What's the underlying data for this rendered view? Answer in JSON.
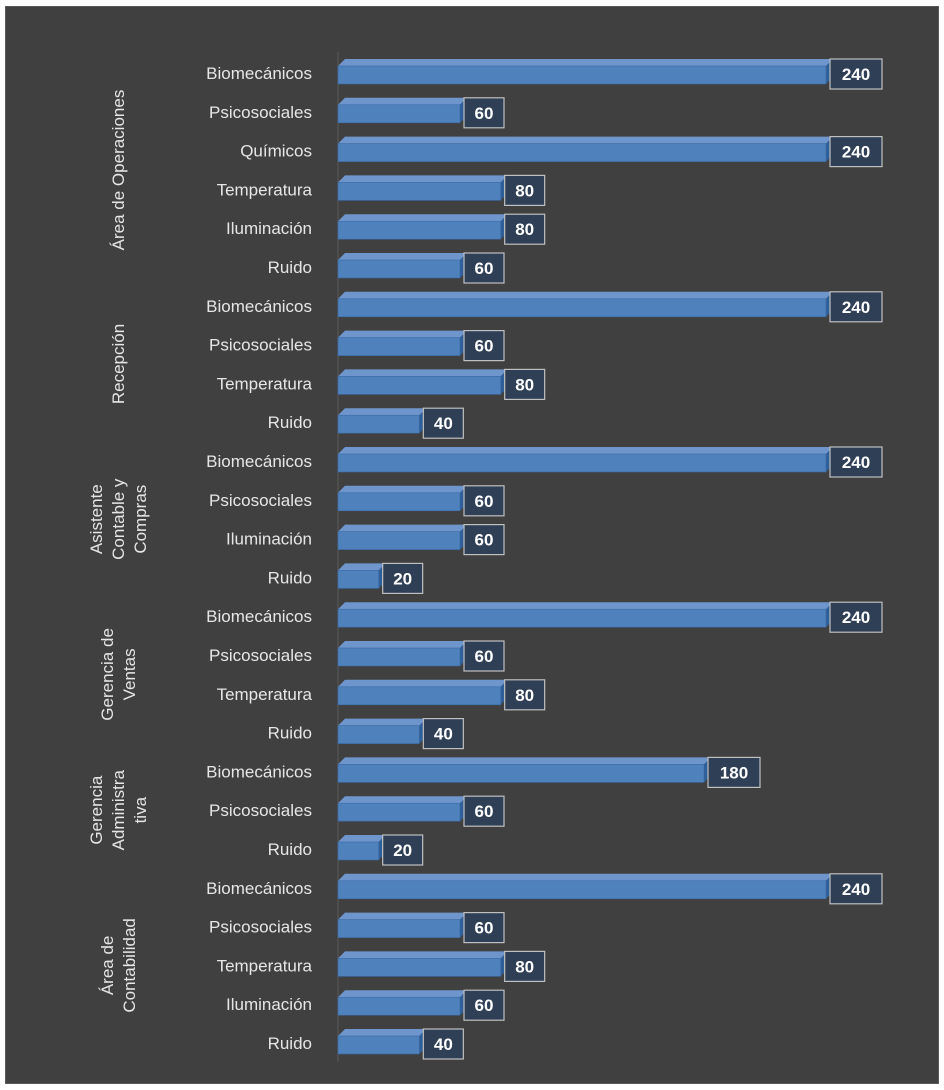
{
  "chart_data": {
    "type": "bar",
    "orientation": "horizontal",
    "style": "3d-clustered-bar",
    "colors": {
      "background": "#404040",
      "bar_front": "#4f81bd",
      "bar_top": "#6f96cc",
      "bar_side": "#2f5f98",
      "label_box": "#2f3f56",
      "label_border": "#c0c0c0",
      "text": "#e6e6e6"
    },
    "xlim": [
      0,
      240
    ],
    "grid": false,
    "legend": "none",
    "groups": [
      {
        "name": "Área de Operaciones",
        "name_lines": [
          "Área de Operaciones"
        ],
        "items": [
          {
            "category": "Biomecánicos",
            "value": 240
          },
          {
            "category": "Psicosociales",
            "value": 60
          },
          {
            "category": "Químicos",
            "value": 240
          },
          {
            "category": "Temperatura",
            "value": 80
          },
          {
            "category": "Iluminación",
            "value": 80
          },
          {
            "category": "Ruido",
            "value": 60
          }
        ]
      },
      {
        "name": "Recepción",
        "name_lines": [
          "Recepción"
        ],
        "items": [
          {
            "category": "Biomecánicos",
            "value": 240
          },
          {
            "category": "Psicosociales",
            "value": 60
          },
          {
            "category": "Temperatura",
            "value": 80
          },
          {
            "category": "Ruido",
            "value": 40
          }
        ]
      },
      {
        "name": "Asistente Contable y Compras",
        "name_lines": [
          "Asistente",
          "Contable y",
          "Compras"
        ],
        "items": [
          {
            "category": "Biomecánicos",
            "value": 240
          },
          {
            "category": "Psicosociales",
            "value": 60
          },
          {
            "category": "Iluminación",
            "value": 60
          },
          {
            "category": "Ruido",
            "value": 20
          }
        ]
      },
      {
        "name": "Gerencia de Ventas",
        "name_lines": [
          "Gerencia de",
          "Ventas"
        ],
        "items": [
          {
            "category": "Biomecánicos",
            "value": 240
          },
          {
            "category": "Psicosociales",
            "value": 60
          },
          {
            "category": "Temperatura",
            "value": 80
          },
          {
            "category": "Ruido",
            "value": 40
          }
        ]
      },
      {
        "name": "Gerencia Administrativa",
        "name_lines": [
          "Gerencia",
          "Administra",
          "tiva"
        ],
        "items": [
          {
            "category": "Biomecánicos",
            "value": 180
          },
          {
            "category": "Psicosociales",
            "value": 60
          },
          {
            "category": "Ruido",
            "value": 20
          }
        ]
      },
      {
        "name": "Área de Contabilidad",
        "name_lines": [
          "Área de",
          "Contabilidad"
        ],
        "items": [
          {
            "category": "Biomecánicos",
            "value": 240
          },
          {
            "category": "Psicosociales",
            "value": 60
          },
          {
            "category": "Temperatura",
            "value": 80
          },
          {
            "category": "Iluminación",
            "value": 60
          },
          {
            "category": "Ruido",
            "value": 40
          }
        ]
      }
    ]
  }
}
